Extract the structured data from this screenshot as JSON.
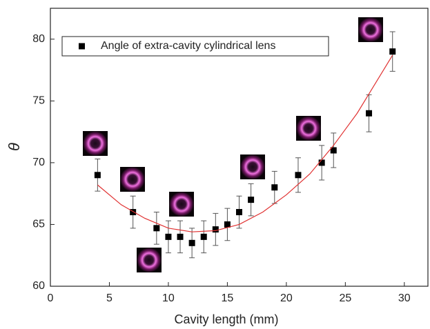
{
  "chart_data": {
    "type": "scatter",
    "xlabel": "Cavity length (mm)",
    "ylabel": "θ",
    "xlim": [
      0,
      32
    ],
    "ylim": [
      60,
      82.5
    ],
    "xticks": [
      0,
      5,
      10,
      15,
      20,
      25,
      30
    ],
    "yticks": [
      60,
      65,
      70,
      75,
      80
    ],
    "legend": "upper left",
    "series": [
      {
        "name": "Angle of extra-cavity cylindrical lens",
        "color": "#000000",
        "x": [
          4,
          7,
          9,
          10,
          11,
          12,
          13,
          14,
          15,
          16,
          17,
          19,
          21,
          23,
          24,
          27,
          29
        ],
        "values": [
          69,
          66,
          64.7,
          64,
          64,
          63.5,
          64,
          64.6,
          65,
          66,
          67,
          68,
          69,
          70,
          71,
          74,
          79
        ],
        "errors": [
          1.3,
          1.3,
          1.3,
          1.3,
          1.3,
          1.2,
          1.3,
          1.3,
          1.3,
          1.3,
          1.3,
          1.3,
          1.4,
          1.4,
          1.4,
          1.5,
          1.6
        ]
      },
      {
        "color": "#e03030",
        "x": [
          4,
          6,
          8,
          10,
          12,
          14,
          16,
          18,
          20,
          22,
          24,
          26,
          29
        ],
        "values": [
          68.2,
          66.6,
          65.5,
          64.7,
          64.4,
          64.5,
          65.0,
          66.0,
          67.4,
          69.1,
          71.4,
          74.0,
          78.7
        ]
      }
    ]
  }
}
